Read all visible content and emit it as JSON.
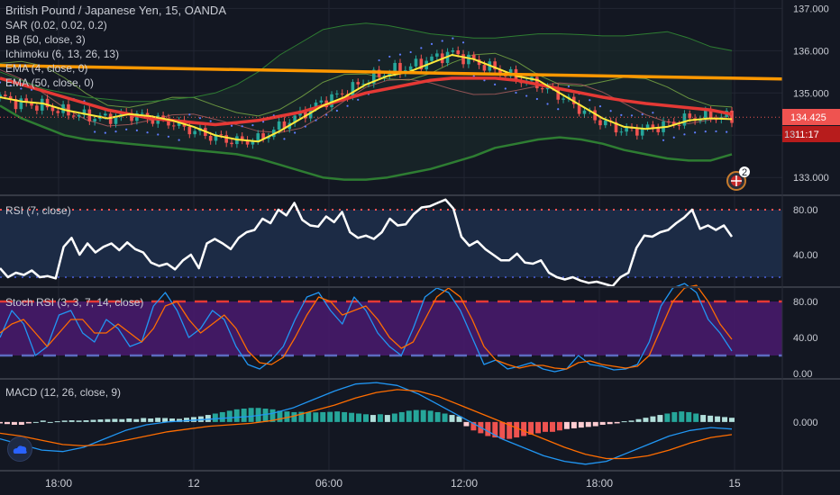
{
  "header": {
    "title": "British Pound / Japanese Yen, 15, OANDA"
  },
  "indicators": {
    "sar": "SAR (0.02, 0.02, 0.2)",
    "bb": "BB (50, close, 3)",
    "ichimoku": "Ichimoku (6, 13, 26, 13)",
    "ema_fast": "EMA (4, close, 0)",
    "ema_slow": "EMA (50, close, 0)"
  },
  "badges": {
    "price": "134.425",
    "countdown": "11:17",
    "partial_left": "13",
    "events_count": "2"
  },
  "panels": {
    "rsi_title": "RSI (7, close)",
    "stoch_title": "Stoch RSI (3, 3, 7, 14, close)",
    "macd_title": "MACD (12, 26, close, 9)"
  },
  "colors": {
    "background": "#131722",
    "grid": "#222633",
    "bb_band": "#2e7d32",
    "bb_fill": "#1a2a2a",
    "ema_fast": "#ffeb3b",
    "ema_slow": "#e53935",
    "trendline": "#ff9800",
    "sar": "#5f7cff",
    "candle_up": "#26a69a",
    "candle_down": "#ef5350",
    "rsi_line": "#ffffff",
    "rsi_level": "#ff5252",
    "rsi_fill": "#1c2b45",
    "stoch_fill": "#4a1a6e",
    "stoch_k": "#2196f3",
    "stoch_d": "#ff6d00",
    "macd_line": "#2196f3",
    "signal_line": "#ff6d00",
    "hist_pos": "#26a69a",
    "hist_neg": "#ef5350"
  },
  "chart_data": [
    {
      "type": "line",
      "name": "price",
      "title": "British Pound / Japanese Yen, 15, OANDA",
      "x_ticks": [
        "18:00",
        "12",
        "06:00",
        "12:00",
        "18:00",
        "15"
      ],
      "y_ticks": [
        133.0,
        134.0,
        135.0,
        136.0,
        137.0
      ],
      "ylim": [
        132.6,
        137.2
      ],
      "last_price": 134.425,
      "trendline": {
        "from": 135.65,
        "to": 135.33
      },
      "series": [
        {
          "name": "EMA (4, close, 0)",
          "values": [
            134.9,
            134.8,
            134.75,
            134.6,
            134.5,
            134.4,
            134.5,
            134.45,
            134.35,
            134.2,
            134.0,
            133.9,
            133.85,
            134.1,
            134.4,
            134.7,
            134.9,
            135.2,
            135.4,
            135.5,
            135.7,
            135.9,
            135.8,
            135.6,
            135.4,
            135.3,
            135.0,
            134.7,
            134.4,
            134.2,
            134.15,
            134.2,
            134.35,
            134.4,
            134.38
          ]
        },
        {
          "name": "EMA (50, close, 0)",
          "values": [
            135.35,
            135.2,
            135.05,
            134.9,
            134.75,
            134.6,
            134.5,
            134.4,
            134.35,
            134.3,
            134.25,
            134.3,
            134.35,
            134.45,
            134.55,
            134.7,
            134.85,
            135.0,
            135.1,
            135.2,
            135.3,
            135.35,
            135.35,
            135.35,
            135.3,
            135.2,
            135.1,
            135.0,
            134.9,
            134.82,
            134.75,
            134.7,
            134.65,
            134.6,
            134.5
          ]
        },
        {
          "name": "BB upper",
          "values": [
            135.5,
            135.3,
            135.1,
            135.0,
            134.9,
            134.85,
            134.8,
            134.8,
            134.85,
            134.9,
            135.0,
            135.2,
            135.5,
            135.9,
            136.2,
            136.5,
            136.6,
            136.65,
            136.6,
            136.5,
            136.4,
            136.35,
            136.3,
            136.3,
            136.35,
            136.4,
            136.4,
            136.38,
            136.35,
            136.35,
            136.4,
            136.45,
            136.3,
            136.1,
            136.0
          ]
        },
        {
          "name": "BB lower",
          "values": [
            134.7,
            134.4,
            134.2,
            134.0,
            133.9,
            133.85,
            133.8,
            133.75,
            133.7,
            133.65,
            133.6,
            133.55,
            133.45,
            133.3,
            133.15,
            133.0,
            132.95,
            132.95,
            133.0,
            133.1,
            133.2,
            133.35,
            133.5,
            133.7,
            133.8,
            133.9,
            133.95,
            133.9,
            133.8,
            133.65,
            133.55,
            133.45,
            133.4,
            133.4,
            133.55
          ]
        },
        {
          "name": "Close",
          "values": [
            134.9,
            134.75,
            134.7,
            134.55,
            134.45,
            134.4,
            134.5,
            134.4,
            134.3,
            134.1,
            133.95,
            133.85,
            133.9,
            134.2,
            134.5,
            134.8,
            135.0,
            135.3,
            135.5,
            135.6,
            135.8,
            135.95,
            135.75,
            135.55,
            135.35,
            135.2,
            134.95,
            134.6,
            134.3,
            134.1,
            134.15,
            134.25,
            134.4,
            134.45,
            134.42
          ]
        }
      ]
    },
    {
      "type": "line",
      "name": "rsi",
      "title": "RSI (7, close)",
      "y_ticks": [
        40.0,
        80.0
      ],
      "ylim": [
        12,
        92
      ],
      "levels": [
        80,
        20
      ],
      "series": [
        {
          "name": "RSI",
          "values": [
            28,
            20,
            24,
            22,
            26,
            20,
            21,
            19,
            47,
            55,
            40,
            50,
            42,
            47,
            50,
            44,
            51,
            45,
            42,
            33,
            30,
            32,
            27,
            35,
            40,
            28,
            50,
            54,
            50,
            45,
            55,
            60,
            62,
            72,
            68,
            80,
            75,
            86,
            71,
            66,
            65,
            74,
            69,
            78,
            60,
            55,
            57,
            54,
            60,
            72,
            66,
            67,
            76,
            82,
            83,
            86,
            89,
            81,
            56,
            48,
            52,
            45,
            40,
            35,
            35,
            41,
            33,
            32,
            35,
            24,
            20,
            18,
            20,
            17,
            15,
            16,
            14,
            12,
            20,
            24,
            46,
            57,
            56,
            60,
            62,
            68,
            73,
            80,
            63,
            66,
            62,
            66,
            56
          ]
        }
      ]
    },
    {
      "type": "line",
      "name": "stoch_rsi",
      "title": "Stoch RSI (3, 3, 7, 14, close)",
      "y_ticks": [
        0.0,
        40.0,
        80.0
      ],
      "ylim": [
        -5,
        95
      ],
      "levels": [
        80,
        20
      ],
      "series": [
        {
          "name": "K",
          "values": [
            40,
            70,
            55,
            20,
            30,
            65,
            70,
            45,
            35,
            60,
            50,
            30,
            35,
            75,
            90,
            70,
            40,
            50,
            70,
            60,
            30,
            10,
            5,
            15,
            30,
            60,
            85,
            90,
            70,
            55,
            85,
            70,
            45,
            30,
            20,
            50,
            85,
            95,
            90,
            70,
            40,
            10,
            15,
            5,
            8,
            12,
            5,
            2,
            5,
            20,
            10,
            8,
            4,
            5,
            10,
            35,
            75,
            95,
            100,
            90,
            60,
            45,
            25
          ]
        },
        {
          "name": "D",
          "values": [
            45,
            55,
            60,
            45,
            30,
            45,
            60,
            60,
            45,
            45,
            55,
            45,
            35,
            50,
            75,
            80,
            60,
            45,
            55,
            65,
            50,
            25,
            12,
            10,
            18,
            40,
            65,
            85,
            80,
            65,
            70,
            75,
            60,
            40,
            28,
            35,
            60,
            85,
            95,
            85,
            60,
            30,
            15,
            10,
            6,
            9,
            9,
            6,
            5,
            12,
            14,
            10,
            8,
            6,
            8,
            20,
            50,
            80,
            95,
            98,
            80,
            55,
            38
          ]
        }
      ]
    },
    {
      "type": "bar",
      "name": "macd",
      "title": "MACD (12, 26, close, 9)",
      "y_ticks": [
        0.0
      ],
      "ylim": [
        -0.34,
        0.3
      ],
      "series": [
        {
          "name": "Histogram",
          "values": [
            -0.01,
            -0.015,
            -0.02,
            -0.02,
            -0.01,
            0.0,
            0.01,
            0.0,
            0.005,
            0.01,
            0.012,
            0.01,
            0.012,
            0.015,
            0.018,
            0.02,
            0.022,
            0.02,
            0.025,
            0.02,
            0.028,
            0.025,
            0.03,
            0.028,
            0.025,
            0.022,
            0.03,
            0.035,
            0.04,
            0.05,
            0.06,
            0.07,
            0.08,
            0.09,
            0.095,
            0.1,
            0.1,
            0.095,
            0.09,
            0.08,
            0.075,
            0.07,
            0.072,
            0.07,
            0.068,
            0.07,
            0.072,
            0.075,
            0.07,
            0.065,
            0.06,
            0.055,
            0.05,
            0.055,
            0.05,
            0.06,
            0.07,
            0.08,
            0.085,
            0.085,
            0.08,
            0.07,
            0.06,
            0.05,
            0.04,
            -0.03,
            -0.06,
            -0.08,
            -0.1,
            -0.11,
            -0.12,
            -0.12,
            -0.11,
            -0.1,
            -0.09,
            -0.08,
            -0.07,
            -0.07,
            -0.06,
            -0.05,
            -0.045,
            -0.04,
            -0.035,
            -0.03,
            -0.02,
            -0.015,
            -0.01,
            0.005,
            0.01,
            0.02,
            0.03,
            0.04,
            0.05,
            0.06,
            0.07,
            0.075,
            0.07,
            0.06,
            0.05,
            0.045,
            0.04,
            0.035,
            0.03
          ]
        },
        {
          "name": "MACD",
          "values": [
            -0.12,
            -0.16,
            -0.2,
            -0.21,
            -0.18,
            -0.12,
            -0.06,
            -0.02,
            0.0,
            0.01,
            0.02,
            0.03,
            0.04,
            0.06,
            0.1,
            0.16,
            0.22,
            0.27,
            0.28,
            0.26,
            0.2,
            0.12,
            0.04,
            -0.04,
            -0.12,
            -0.18,
            -0.24,
            -0.28,
            -0.3,
            -0.28,
            -0.22,
            -0.16,
            -0.1,
            -0.06,
            -0.04,
            -0.05
          ]
        },
        {
          "name": "Signal",
          "values": [
            -0.08,
            -0.1,
            -0.13,
            -0.16,
            -0.17,
            -0.16,
            -0.13,
            -0.1,
            -0.07,
            -0.05,
            -0.03,
            -0.02,
            -0.01,
            0.01,
            0.04,
            0.08,
            0.12,
            0.17,
            0.21,
            0.23,
            0.22,
            0.18,
            0.12,
            0.06,
            0.0,
            -0.06,
            -0.12,
            -0.18,
            -0.23,
            -0.26,
            -0.26,
            -0.24,
            -0.2,
            -0.15,
            -0.11,
            -0.09
          ]
        }
      ]
    }
  ]
}
